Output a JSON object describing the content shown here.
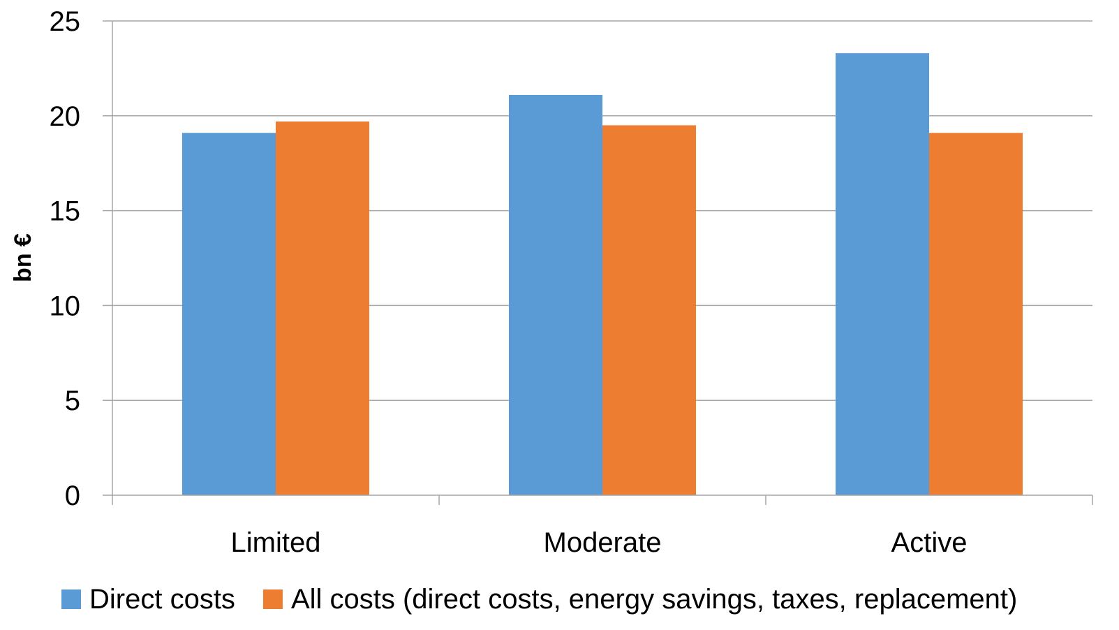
{
  "chart_data": {
    "type": "bar",
    "title": "",
    "xlabel": "",
    "ylabel": "bn €",
    "ylim": [
      0,
      25
    ],
    "yticks": [
      0,
      5,
      10,
      15,
      20,
      25
    ],
    "grid": true,
    "legend_position": "bottom",
    "categories": [
      "Limited",
      "Moderate",
      "Active"
    ],
    "series": [
      {
        "name": "Direct costs",
        "color": "#5b9bd5",
        "values": [
          19.1,
          21.1,
          23.3
        ]
      },
      {
        "name": "All costs (direct costs, energy savings, taxes, replacement)",
        "color": "#ed7d31",
        "values": [
          19.7,
          19.5,
          19.1
        ]
      }
    ]
  }
}
